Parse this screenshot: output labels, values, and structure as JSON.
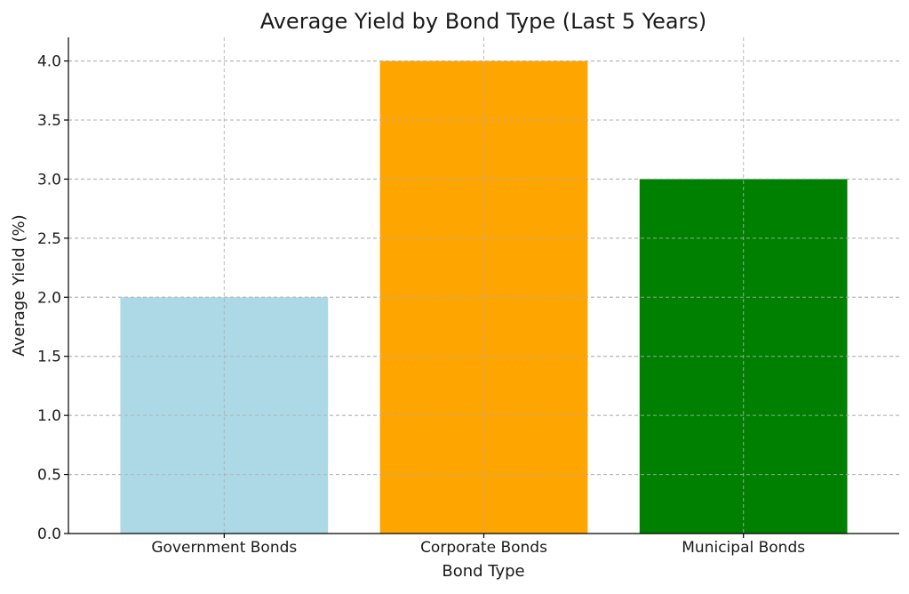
{
  "chart_data": {
    "type": "bar",
    "title": "Average Yield by Bond Type (Last 5 Years)",
    "xlabel": "Bond Type",
    "ylabel": "Average Yield (%)",
    "categories": [
      "Government Bonds",
      "Corporate Bonds",
      "Municipal Bonds"
    ],
    "values": [
      2.0,
      4.0,
      3.0
    ],
    "colors": [
      "#add8e6",
      "#ffa500",
      "#008000"
    ],
    "ylim": [
      0,
      4.2
    ],
    "yticks": [
      "0.0",
      "0.5",
      "1.0",
      "1.5",
      "2.0",
      "2.5",
      "3.0",
      "3.5",
      "4.0"
    ],
    "grid": true
  }
}
